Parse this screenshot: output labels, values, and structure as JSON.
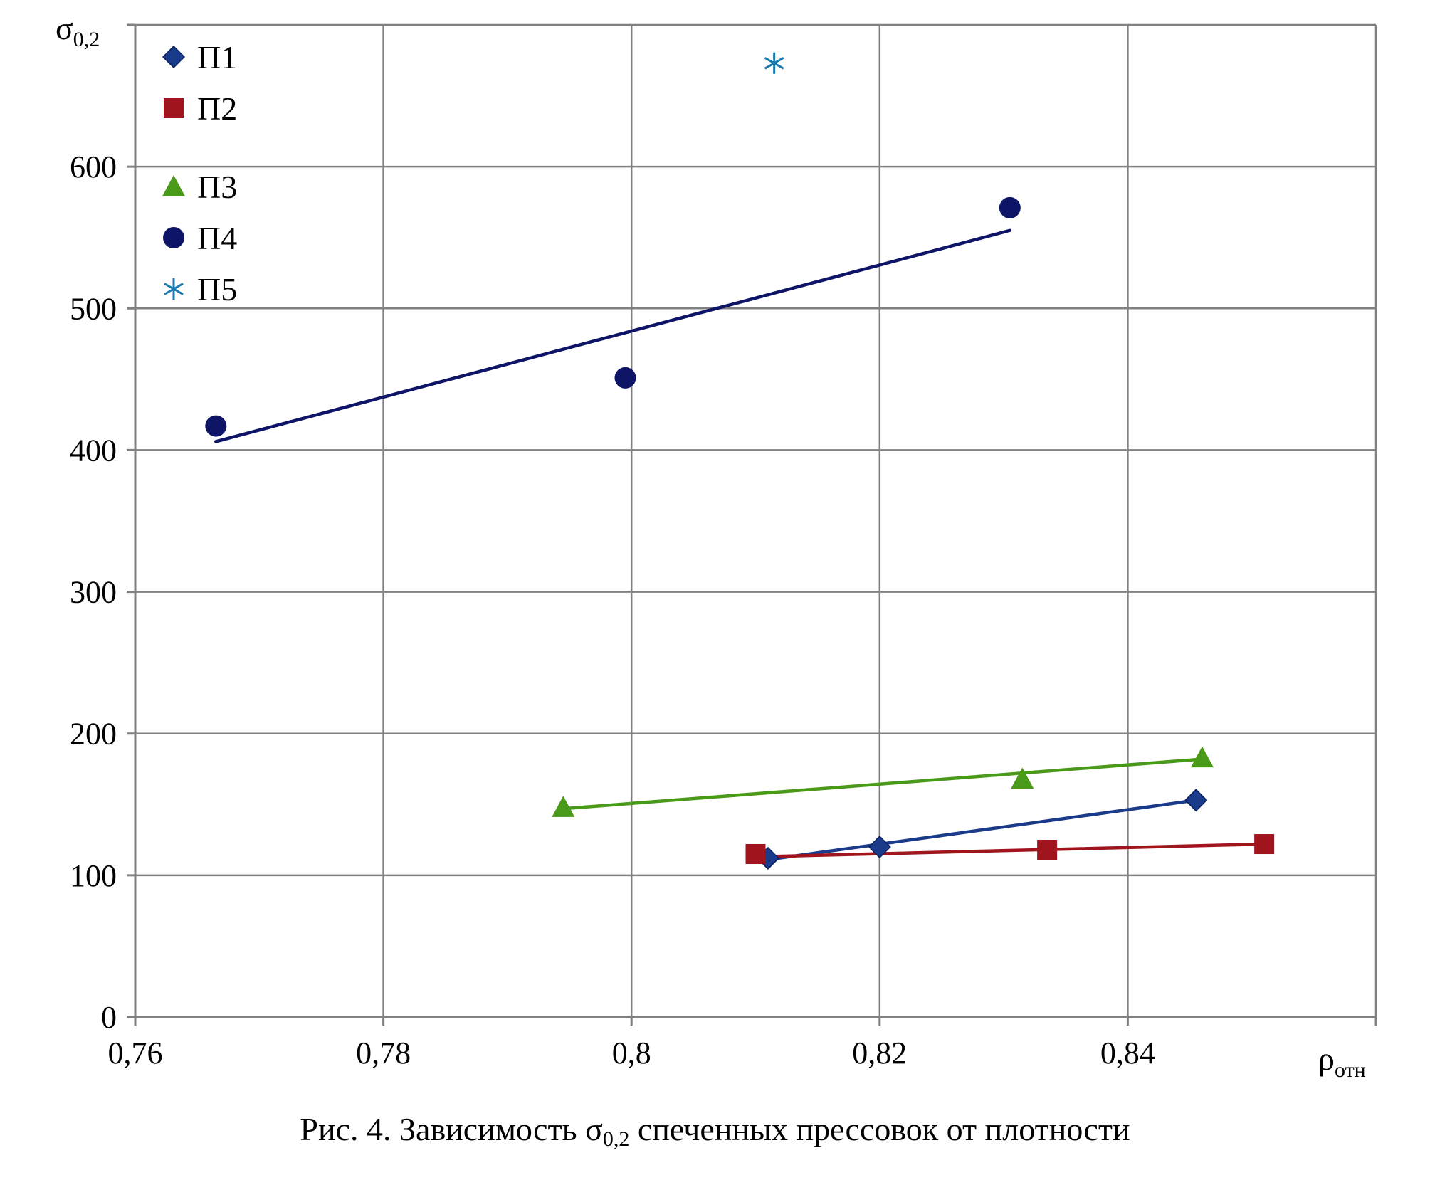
{
  "chart_data": {
    "type": "scatter",
    "title": "",
    "xlabel": "ρ",
    "xlabel_sub": "отн",
    "ylabel": "σ",
    "ylabel_sub": "0,2",
    "xlim": [
      0.76,
      0.86
    ],
    "ylim": [
      0,
      700
    ],
    "x_ticks": [
      0.76,
      0.78,
      0.8,
      0.82,
      0.84
    ],
    "x_tick_labels": [
      "0,76",
      "0,78",
      "0,8",
      "0,82",
      "0,84"
    ],
    "y_ticks": [
      0,
      100,
      200,
      300,
      400,
      500,
      600
    ],
    "y_tick_labels": [
      "0",
      "100",
      "200",
      "300",
      "400",
      "500",
      "600"
    ],
    "grid": true,
    "legend_position": "top-left",
    "series": [
      {
        "name": "П1",
        "marker": "diamond",
        "color": "#1a3a8a",
        "points": [
          [
            0.811,
            112
          ],
          [
            0.82,
            120
          ],
          [
            0.8455,
            153
          ]
        ],
        "fit": [
          [
            0.811,
            111
          ],
          [
            0.8455,
            153
          ]
        ]
      },
      {
        "name": "П2",
        "marker": "square",
        "color": "#a0141e",
        "points": [
          [
            0.81,
            115
          ],
          [
            0.8335,
            118
          ],
          [
            0.851,
            122
          ]
        ],
        "fit": [
          [
            0.81,
            113
          ],
          [
            0.851,
            122
          ]
        ]
      },
      {
        "name": "П3",
        "marker": "triangle",
        "color": "#4a9a1a",
        "points": [
          [
            0.7945,
            148
          ],
          [
            0.8315,
            168
          ],
          [
            0.846,
            183
          ]
        ],
        "fit": [
          [
            0.7945,
            147
          ],
          [
            0.846,
            182
          ]
        ]
      },
      {
        "name": "П4",
        "marker": "circle",
        "color": "#0e1466",
        "points": [
          [
            0.7665,
            417
          ],
          [
            0.7995,
            451
          ],
          [
            0.8305,
            571
          ]
        ],
        "fit": [
          [
            0.7665,
            406
          ],
          [
            0.8305,
            555
          ]
        ]
      },
      {
        "name": "П5",
        "marker": "asterisk",
        "color": "#1a7ab0",
        "points": [
          [
            0.8115,
            673
          ]
        ],
        "fit": []
      }
    ]
  },
  "caption": {
    "prefix": "Рис. 4. Зависимость σ",
    "sub": "0,2",
    "suffix": " спеченных прессовок от плотности"
  }
}
